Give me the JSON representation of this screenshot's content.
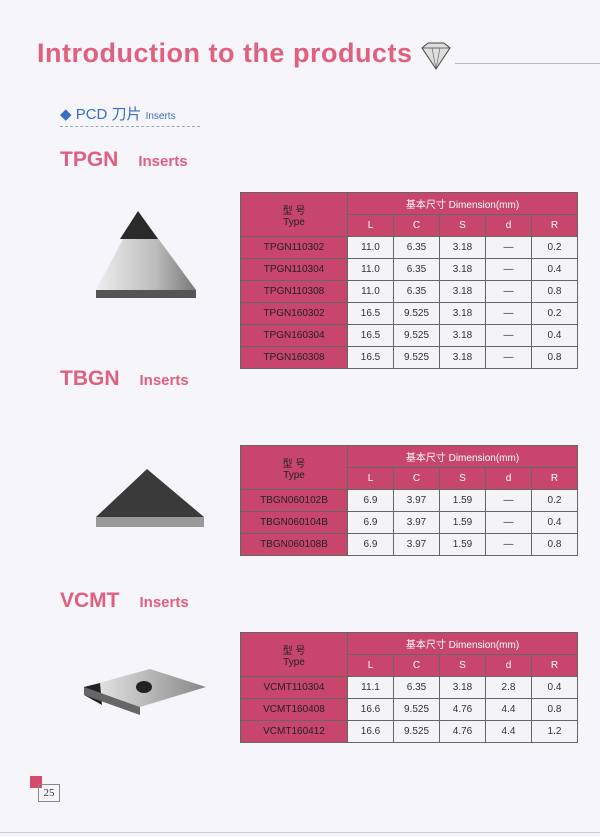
{
  "title": "Introduction to the products",
  "subtitle": {
    "cn": "PCD 刀片",
    "en": "Inserts"
  },
  "headers": {
    "type_cn": "型  号",
    "type_en": "Type",
    "dimension": "基本尺寸 Dimension(mm)",
    "cols": [
      "L",
      "C",
      "S",
      "d",
      "R"
    ]
  },
  "sections": [
    {
      "name": "TPGN",
      "suffix": "Inserts",
      "rows": [
        [
          "TPGN110302",
          "11.0",
          "6.35",
          "3.18",
          "—",
          "0.2"
        ],
        [
          "TPGN110304",
          "11.0",
          "6.35",
          "3.18",
          "—",
          "0.4"
        ],
        [
          "TPGN110308",
          "11.0",
          "6.35",
          "3.18",
          "—",
          "0.8"
        ],
        [
          "TPGN160302",
          "16.5",
          "9.525",
          "3.18",
          "—",
          "0.2"
        ],
        [
          "TPGN160304",
          "16.5",
          "9.525",
          "3.18",
          "—",
          "0.4"
        ],
        [
          "TPGN160308",
          "16.5",
          "9.525",
          "3.18",
          "—",
          "0.8"
        ]
      ]
    },
    {
      "name": "TBGN",
      "suffix": "Inserts",
      "rows": [
        [
          "TBGN060102B",
          "6.9",
          "3.97",
          "1.59",
          "—",
          "0.2"
        ],
        [
          "TBGN060104B",
          "6.9",
          "3.97",
          "1.59",
          "—",
          "0.4"
        ],
        [
          "TBGN060108B",
          "6.9",
          "3.97",
          "1.59",
          "—",
          "0.8"
        ]
      ]
    },
    {
      "name": "VCMT",
      "suffix": "Inserts",
      "rows": [
        [
          "VCMT110304",
          "11.1",
          "6.35",
          "3.18",
          "2.8",
          "0.4"
        ],
        [
          "VCMT160408",
          "16.6",
          "9.525",
          "4.76",
          "4.4",
          "0.8"
        ],
        [
          "VCMT160412",
          "16.6",
          "9.525",
          "4.76",
          "4.4",
          "1.2"
        ]
      ]
    }
  ],
  "page_number": "25",
  "colors": {
    "accent": "#e0607f",
    "table_header": "#c8466c",
    "subtitle": "#3a6fc4"
  }
}
